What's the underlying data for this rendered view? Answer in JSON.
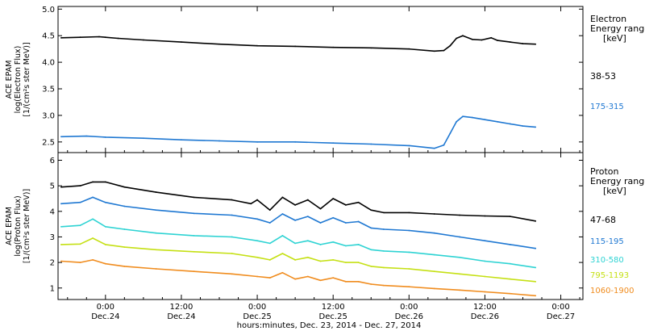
{
  "figure": {
    "xlabel": "hours:minutes, Dec. 23, 2014 - Dec. 27, 2014",
    "x_ticks": [
      {
        "t": 0,
        "time": "0:00",
        "day": "Dec.24"
      },
      {
        "t": 12,
        "time": "12:00",
        "day": "Dec.24"
      },
      {
        "t": 24,
        "time": "0:00",
        "day": "Dec.25"
      },
      {
        "t": 36,
        "time": "12:00",
        "day": "Dec.25"
      },
      {
        "t": 48,
        "time": "0:00",
        "day": "Dec.26"
      },
      {
        "t": 60,
        "time": "12:00",
        "day": "Dec.26"
      },
      {
        "t": 72,
        "time": "0:00",
        "day": "Dec.27"
      }
    ],
    "xlim": [
      -7.5,
      75.5
    ]
  },
  "chart_data": [
    {
      "type": "line",
      "panel": "electron",
      "ylabel": [
        "ACE EPAM",
        "log(Electron Flux)",
        "[1/(cm²s ster MeV)]"
      ],
      "ylim": [
        2.3,
        5.05
      ],
      "yticks": [
        2.5,
        3.0,
        3.5,
        4.0,
        4.5,
        5.0
      ],
      "ytick_labels": [
        "2.5",
        "3.0",
        "3.5",
        "4.0",
        "4.5",
        "5.0"
      ],
      "legend_title": [
        "Electron",
        "Energy ranges",
        "[keV]"
      ],
      "series": [
        {
          "name": "38-53",
          "color": "#000000",
          "x": [
            -7,
            -4,
            -1,
            0,
            2,
            6,
            12,
            18,
            24,
            30,
            36,
            42,
            48,
            52,
            53.5,
            54.5,
            55.5,
            56.5,
            58,
            59.5,
            61,
            62,
            64,
            66,
            68
          ],
          "y": [
            4.46,
            4.47,
            4.48,
            4.47,
            4.45,
            4.42,
            4.38,
            4.34,
            4.31,
            4.3,
            4.28,
            4.27,
            4.25,
            4.21,
            4.22,
            4.31,
            4.45,
            4.5,
            4.43,
            4.42,
            4.46,
            4.41,
            4.38,
            4.35,
            4.34
          ]
        },
        {
          "name": "175-315",
          "color": "#1f78d2",
          "x": [
            -7,
            -3,
            0,
            6,
            12,
            18,
            24,
            30,
            36,
            42,
            48,
            52,
            53.5,
            54.5,
            55.5,
            56.5,
            58,
            60,
            62,
            64,
            66,
            68
          ],
          "y": [
            2.6,
            2.61,
            2.59,
            2.57,
            2.54,
            2.52,
            2.5,
            2.5,
            2.48,
            2.46,
            2.43,
            2.38,
            2.44,
            2.66,
            2.88,
            2.98,
            2.96,
            2.92,
            2.88,
            2.84,
            2.8,
            2.78
          ]
        }
      ]
    },
    {
      "type": "line",
      "panel": "proton",
      "ylabel": [
        "ACE EPAM",
        "log(Proton Flux)",
        "[1/(cm²s ster MeV)]"
      ],
      "ylim": [
        0.55,
        6.3
      ],
      "yticks": [
        1,
        2,
        3,
        4,
        5,
        6
      ],
      "ytick_labels": [
        "1",
        "2",
        "3",
        "4",
        "5",
        "6"
      ],
      "legend_title": [
        "Proton",
        "Energy ranges",
        "[keV]"
      ],
      "series": [
        {
          "name": "47-68",
          "color": "#000000",
          "x": [
            -7,
            -4,
            -2,
            0,
            3,
            8,
            14,
            20,
            23,
            24,
            26,
            28,
            30,
            32,
            34,
            36,
            38,
            40,
            42,
            44,
            48,
            52,
            56,
            60,
            64,
            68
          ],
          "y": [
            4.95,
            5.0,
            5.15,
            5.15,
            4.95,
            4.75,
            4.55,
            4.45,
            4.3,
            4.45,
            4.05,
            4.55,
            4.25,
            4.45,
            4.1,
            4.5,
            4.25,
            4.35,
            4.05,
            3.95,
            3.95,
            3.9,
            3.85,
            3.82,
            3.8,
            3.62
          ]
        },
        {
          "name": "115-195",
          "color": "#1f78d2",
          "x": [
            -7,
            -4,
            -2,
            0,
            3,
            8,
            14,
            20,
            24,
            26,
            28,
            30,
            32,
            34,
            36,
            38,
            40,
            42,
            44,
            48,
            52,
            56,
            60,
            64,
            68
          ],
          "y": [
            4.3,
            4.35,
            4.55,
            4.35,
            4.2,
            4.05,
            3.92,
            3.85,
            3.7,
            3.55,
            3.9,
            3.65,
            3.8,
            3.55,
            3.75,
            3.55,
            3.6,
            3.35,
            3.3,
            3.25,
            3.15,
            3.0,
            2.85,
            2.7,
            2.55
          ]
        },
        {
          "name": "310-580",
          "color": "#2ed3d3",
          "x": [
            -7,
            -4,
            -2,
            0,
            3,
            8,
            14,
            20,
            24,
            26,
            28,
            30,
            32,
            34,
            36,
            38,
            40,
            42,
            44,
            48,
            52,
            56,
            60,
            64,
            68
          ],
          "y": [
            3.4,
            3.45,
            3.7,
            3.4,
            3.3,
            3.15,
            3.05,
            3.0,
            2.85,
            2.75,
            3.05,
            2.75,
            2.85,
            2.7,
            2.8,
            2.65,
            2.7,
            2.5,
            2.45,
            2.4,
            2.3,
            2.2,
            2.05,
            1.95,
            1.8
          ]
        },
        {
          "name": "795-1193",
          "color": "#c5e014",
          "x": [
            -7,
            -4,
            -2,
            0,
            3,
            8,
            14,
            20,
            24,
            26,
            28,
            30,
            32,
            34,
            36,
            38,
            40,
            42,
            44,
            48,
            52,
            56,
            60,
            64,
            68
          ],
          "y": [
            2.7,
            2.72,
            2.95,
            2.7,
            2.6,
            2.5,
            2.42,
            2.35,
            2.2,
            2.1,
            2.35,
            2.1,
            2.2,
            2.05,
            2.1,
            2.0,
            2.0,
            1.85,
            1.8,
            1.75,
            1.65,
            1.55,
            1.45,
            1.35,
            1.25
          ]
        },
        {
          "name": "1060-1900",
          "color": "#f08c1e",
          "x": [
            -7,
            -4,
            -2,
            0,
            3,
            8,
            14,
            20,
            24,
            26,
            28,
            30,
            32,
            34,
            36,
            38,
            40,
            42,
            44,
            48,
            52,
            56,
            60,
            64,
            68
          ],
          "y": [
            2.05,
            2.0,
            2.1,
            1.95,
            1.85,
            1.75,
            1.65,
            1.55,
            1.45,
            1.4,
            1.6,
            1.35,
            1.45,
            1.3,
            1.4,
            1.25,
            1.25,
            1.15,
            1.1,
            1.05,
            0.98,
            0.92,
            0.85,
            0.78,
            0.7
          ]
        }
      ]
    }
  ]
}
